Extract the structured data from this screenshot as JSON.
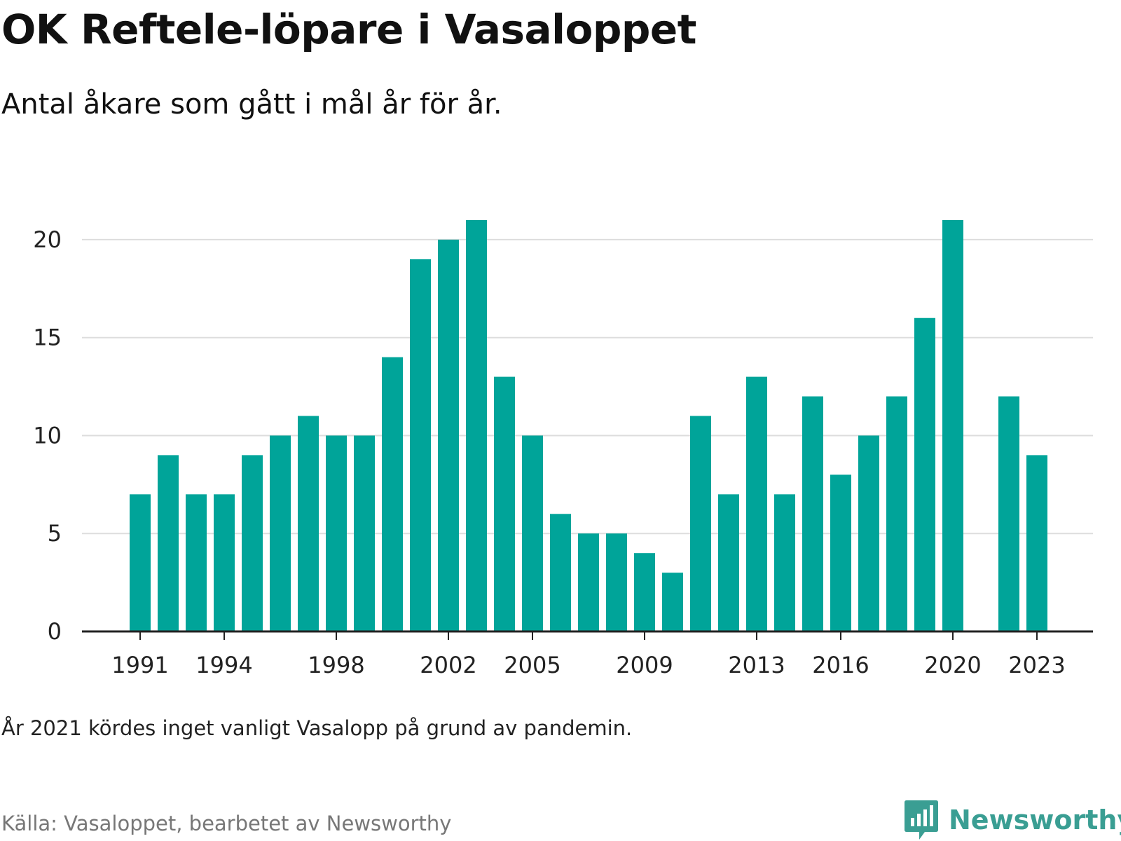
{
  "title": "OK Reftele-löpare i Vasaloppet",
  "subtitle": "Antal åkare som gått i mål år för år.",
  "note": "År 2021 kördes inget vanligt Vasalopp på grund av pandemin.",
  "source": "Källa: Vasaloppet, bearbetet av Newsworthy",
  "logo": {
    "text": "Newsworthy",
    "icon": "newsworthy-chart-bubble-icon"
  },
  "colors": {
    "bar": "#00a499",
    "grid": "#dddddd",
    "axis": "#222222",
    "brand": "#3a9e93"
  },
  "chart_data": {
    "type": "bar",
    "categories": [
      1991,
      1992,
      1993,
      1994,
      1995,
      1996,
      1997,
      1998,
      1999,
      2000,
      2001,
      2002,
      2003,
      2004,
      2005,
      2006,
      2007,
      2008,
      2009,
      2010,
      2011,
      2012,
      2013,
      2014,
      2015,
      2016,
      2017,
      2018,
      2019,
      2020,
      2021,
      2022,
      2023
    ],
    "values": [
      7,
      9,
      7,
      7,
      9,
      10,
      11,
      10,
      10,
      14,
      19,
      20,
      21,
      13,
      10,
      6,
      5,
      5,
      4,
      3,
      11,
      7,
      13,
      7,
      12,
      8,
      10,
      12,
      16,
      21,
      null,
      12,
      9
    ],
    "x_tick_labels": [
      1991,
      1994,
      1998,
      2002,
      2005,
      2009,
      2013,
      2016,
      2020,
      2023
    ],
    "y_ticks": [
      0,
      5,
      10,
      15,
      20
    ],
    "ylim": [
      0,
      21.5
    ],
    "xlabel": "",
    "ylabel": "",
    "grid": true
  }
}
